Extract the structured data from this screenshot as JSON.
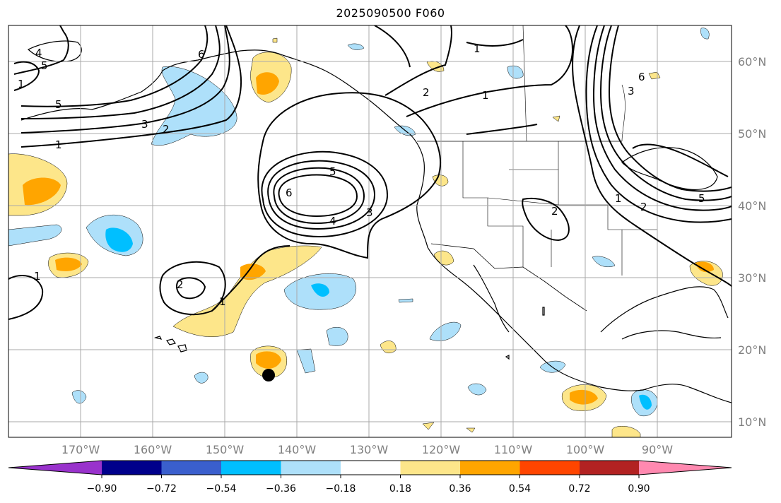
{
  "title": "2025090500 F060",
  "map": {
    "latitude_labels": [
      "60°N",
      "50°N",
      "40°N",
      "30°N",
      "20°N",
      "10°N"
    ],
    "longitude_labels": [
      "170°W",
      "160°W",
      "150°W",
      "140°W",
      "130°W",
      "120°W",
      "110°W",
      "100°W",
      "90°W"
    ],
    "contour_labels": [
      "5",
      "6",
      "4",
      "5",
      "3",
      "2",
      "1",
      "6",
      "5",
      "4",
      "3",
      "2",
      "1",
      "1",
      "2",
      "1",
      "6",
      "5",
      "3",
      "2",
      "1",
      "2",
      "1",
      "1"
    ],
    "marker": "black-dot"
  },
  "colorbar": {
    "ticks": [
      "−0.90",
      "−0.72",
      "−0.54",
      "−0.36",
      "−0.18",
      "0.18",
      "0.36",
      "0.54",
      "0.72",
      "0.90"
    ],
    "colors": [
      "#9932cc",
      "#00008b",
      "#3a5fcd",
      "#00bfff",
      "#aee0fa",
      "#ffffff",
      "#fde68a",
      "#ffa500",
      "#ff4500",
      "#b22222",
      "#ff89b0"
    ]
  },
  "colors": {
    "grid": "#a9a9a9",
    "land_outline": "#000000",
    "light_blue_fill": "#aee0fa",
    "cyan_fill": "#00bfff",
    "yellow_fill": "#fde68a",
    "orange_fill": "#ffa500"
  }
}
